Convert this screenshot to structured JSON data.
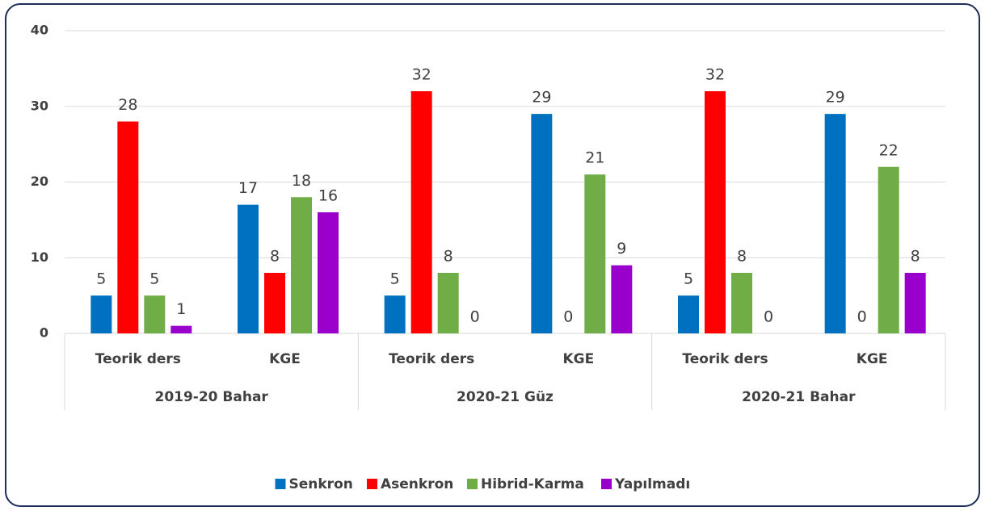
{
  "chart_data": {
    "type": "bar",
    "categories": [
      "Teorik ders",
      "KGE",
      "Teorik ders",
      "KGE",
      "Teorik ders",
      "KGE"
    ],
    "groups": [
      "2019-20 Bahar",
      "2020-21 Güz",
      "2020-21 Bahar"
    ],
    "series": [
      {
        "name": "Senkron",
        "color": "#0070c0",
        "values": [
          5,
          17,
          5,
          29,
          5,
          29
        ]
      },
      {
        "name": "Asenkron",
        "color": "#ff0000",
        "values": [
          28,
          8,
          32,
          0,
          32,
          0
        ]
      },
      {
        "name": "Hibrid-Karma",
        "color": "#70ad47",
        "values": [
          5,
          18,
          8,
          21,
          8,
          22
        ]
      },
      {
        "name": "Yapılmadı",
        "color": "#9900cc",
        "values": [
          1,
          16,
          0,
          9,
          0,
          8
        ]
      }
    ],
    "ylim": [
      0,
      40
    ],
    "yticks": [
      0,
      10,
      20,
      30,
      40
    ],
    "grid": true,
    "legend": "bottom"
  }
}
